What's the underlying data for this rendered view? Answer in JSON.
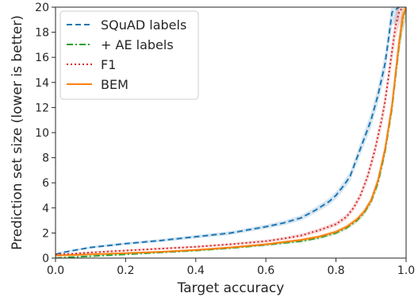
{
  "chart_data": {
    "type": "line",
    "xlabel": "Target accuracy",
    "ylabel": "Prediction set size (lower is better)",
    "xlim": [
      0.0,
      1.0
    ],
    "ylim": [
      0,
      20
    ],
    "xticks": [
      "0.0",
      "0.2",
      "0.4",
      "0.6",
      "0.8",
      "1.0"
    ],
    "yticks": [
      "0",
      "2",
      "4",
      "6",
      "8",
      "10",
      "12",
      "14",
      "16",
      "18",
      "20"
    ],
    "grid": false,
    "legend_position": "top-left",
    "series": [
      {
        "name": "SQuAD labels",
        "color": "#1f77b4",
        "dash": "dashed",
        "x": [
          0.0,
          0.02,
          0.05,
          0.1,
          0.15,
          0.2,
          0.3,
          0.4,
          0.5,
          0.55,
          0.6,
          0.65,
          0.7,
          0.74,
          0.78,
          0.8,
          0.82,
          0.84,
          0.86,
          0.88,
          0.9,
          0.92,
          0.94,
          0.95,
          0.96,
          0.97,
          0.98
        ],
        "y": [
          0.3,
          0.45,
          0.6,
          0.85,
          1.0,
          1.15,
          1.4,
          1.7,
          2.0,
          2.25,
          2.5,
          2.8,
          3.2,
          3.8,
          4.5,
          5.0,
          5.7,
          6.5,
          8.0,
          9.5,
          11.0,
          13.0,
          15.5,
          17.5,
          19.6,
          19.8,
          20.0
        ]
      },
      {
        "name": "+ AE labels",
        "color": "#2ca02c",
        "dash": "dashdot",
        "x": [
          0.0,
          0.05,
          0.1,
          0.2,
          0.3,
          0.4,
          0.5,
          0.6,
          0.7,
          0.75,
          0.8,
          0.83,
          0.86,
          0.88,
          0.9,
          0.92,
          0.94,
          0.96,
          0.97,
          0.98,
          0.99,
          1.0
        ],
        "y": [
          0.0,
          0.08,
          0.15,
          0.3,
          0.45,
          0.6,
          0.8,
          1.05,
          1.35,
          1.6,
          2.0,
          2.4,
          3.0,
          3.6,
          4.5,
          6.0,
          8.5,
          12.0,
          14.5,
          17.0,
          19.0,
          20.0
        ]
      },
      {
        "name": "F1",
        "color": "#d62728",
        "dash": "dotted",
        "x": [
          0.0,
          0.05,
          0.1,
          0.2,
          0.3,
          0.4,
          0.5,
          0.6,
          0.65,
          0.7,
          0.75,
          0.8,
          0.83,
          0.85,
          0.87,
          0.89,
          0.91,
          0.93,
          0.94,
          0.95,
          0.96,
          0.97,
          0.98,
          0.99
        ],
        "y": [
          0.3,
          0.35,
          0.45,
          0.6,
          0.75,
          0.9,
          1.1,
          1.35,
          1.55,
          1.8,
          2.2,
          2.7,
          3.3,
          4.0,
          5.0,
          6.5,
          8.5,
          11.0,
          12.5,
          14.5,
          16.5,
          18.5,
          19.6,
          20.0
        ]
      },
      {
        "name": "BEM",
        "color": "#ff7f0e",
        "dash": "solid",
        "x": [
          0.0,
          0.05,
          0.1,
          0.2,
          0.3,
          0.4,
          0.5,
          0.6,
          0.7,
          0.75,
          0.8,
          0.83,
          0.86,
          0.88,
          0.9,
          0.92,
          0.94,
          0.96,
          0.97,
          0.98,
          0.99,
          1.0
        ],
        "y": [
          0.2,
          0.25,
          0.3,
          0.4,
          0.5,
          0.65,
          0.85,
          1.1,
          1.45,
          1.7,
          2.1,
          2.5,
          3.1,
          3.7,
          4.6,
          6.2,
          8.7,
          12.2,
          14.7,
          17.2,
          19.2,
          20.0
        ]
      }
    ]
  }
}
